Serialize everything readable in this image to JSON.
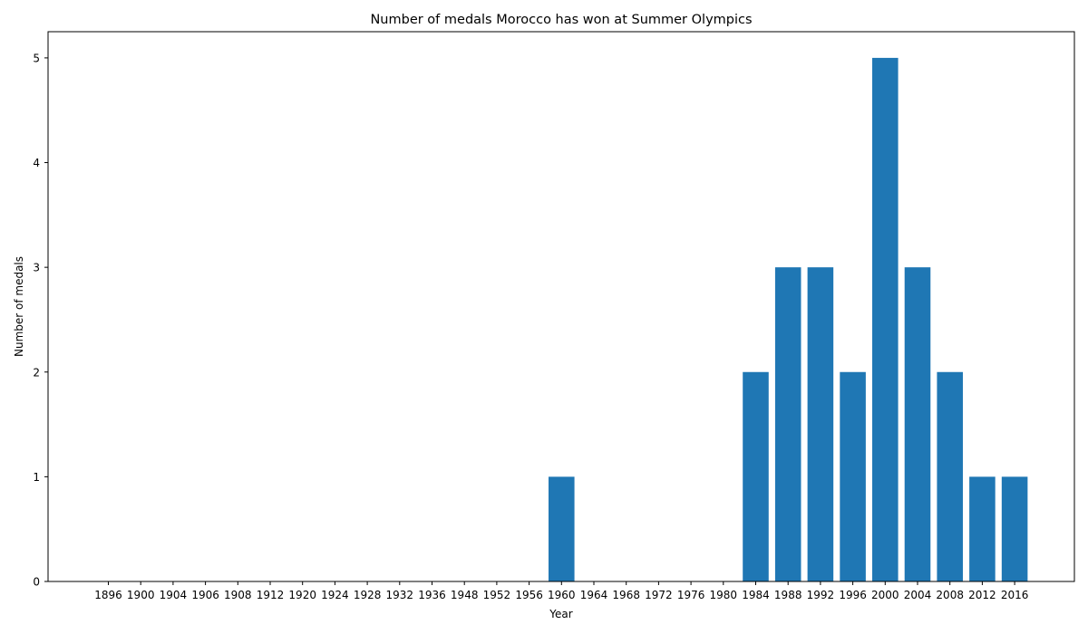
{
  "chart_data": {
    "type": "bar",
    "title": "Number of medals Morocco has won at Summer Olympics",
    "xlabel": "Year",
    "ylabel": "Number of medals",
    "categories": [
      "1896",
      "1900",
      "1904",
      "1906",
      "1908",
      "1912",
      "1920",
      "1924",
      "1928",
      "1932",
      "1936",
      "1948",
      "1952",
      "1956",
      "1960",
      "1964",
      "1968",
      "1972",
      "1976",
      "1980",
      "1984",
      "1988",
      "1992",
      "1996",
      "2000",
      "2004",
      "2008",
      "2012",
      "2016"
    ],
    "values": [
      0,
      0,
      0,
      0,
      0,
      0,
      0,
      0,
      0,
      0,
      0,
      0,
      0,
      0,
      1,
      0,
      0,
      0,
      0,
      0,
      2,
      3,
      3,
      2,
      5,
      3,
      2,
      1,
      1
    ],
    "yticks": [
      0,
      1,
      2,
      3,
      4,
      5
    ],
    "ylim": [
      0,
      5.25
    ],
    "grid": false,
    "legend": "none",
    "bar_color": "#1f77b4"
  }
}
